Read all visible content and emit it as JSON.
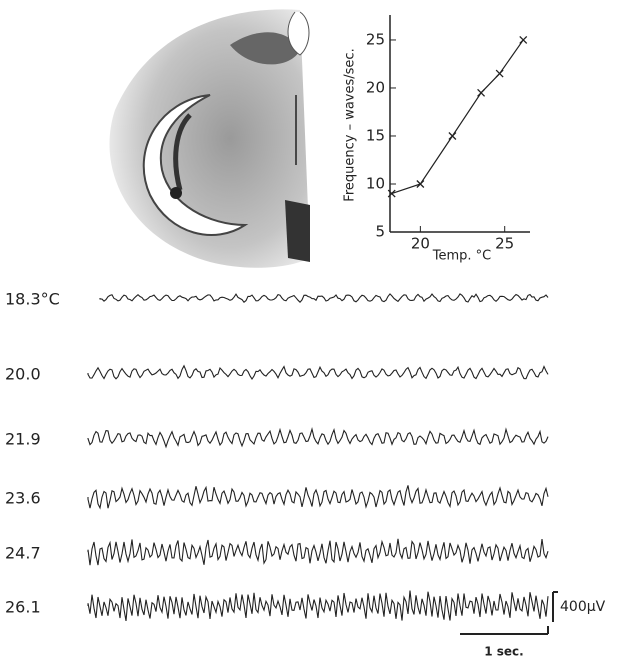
{
  "chart_data": {
    "type": "line",
    "x_label": "Temp. °C",
    "y_label": "Frequency – waves/sec.",
    "x": [
      18.3,
      20.0,
      21.9,
      23.6,
      24.7,
      26.1
    ],
    "values": [
      9,
      10,
      15,
      19.5,
      21.5,
      25
    ],
    "color": "#222222",
    "xlim": [
      18.2,
      26.5
    ],
    "xticks": [
      20,
      25
    ],
    "ylim": [
      5,
      27.6
    ],
    "yticks": [
      5,
      10,
      15,
      20,
      25
    ]
  },
  "traces": [
    "18.3°C",
    "20.0",
    "21.9",
    "23.6",
    "24.7",
    "26.1"
  ],
  "scale_bar": {
    "voltage": "400µV",
    "time": "1 sec."
  }
}
